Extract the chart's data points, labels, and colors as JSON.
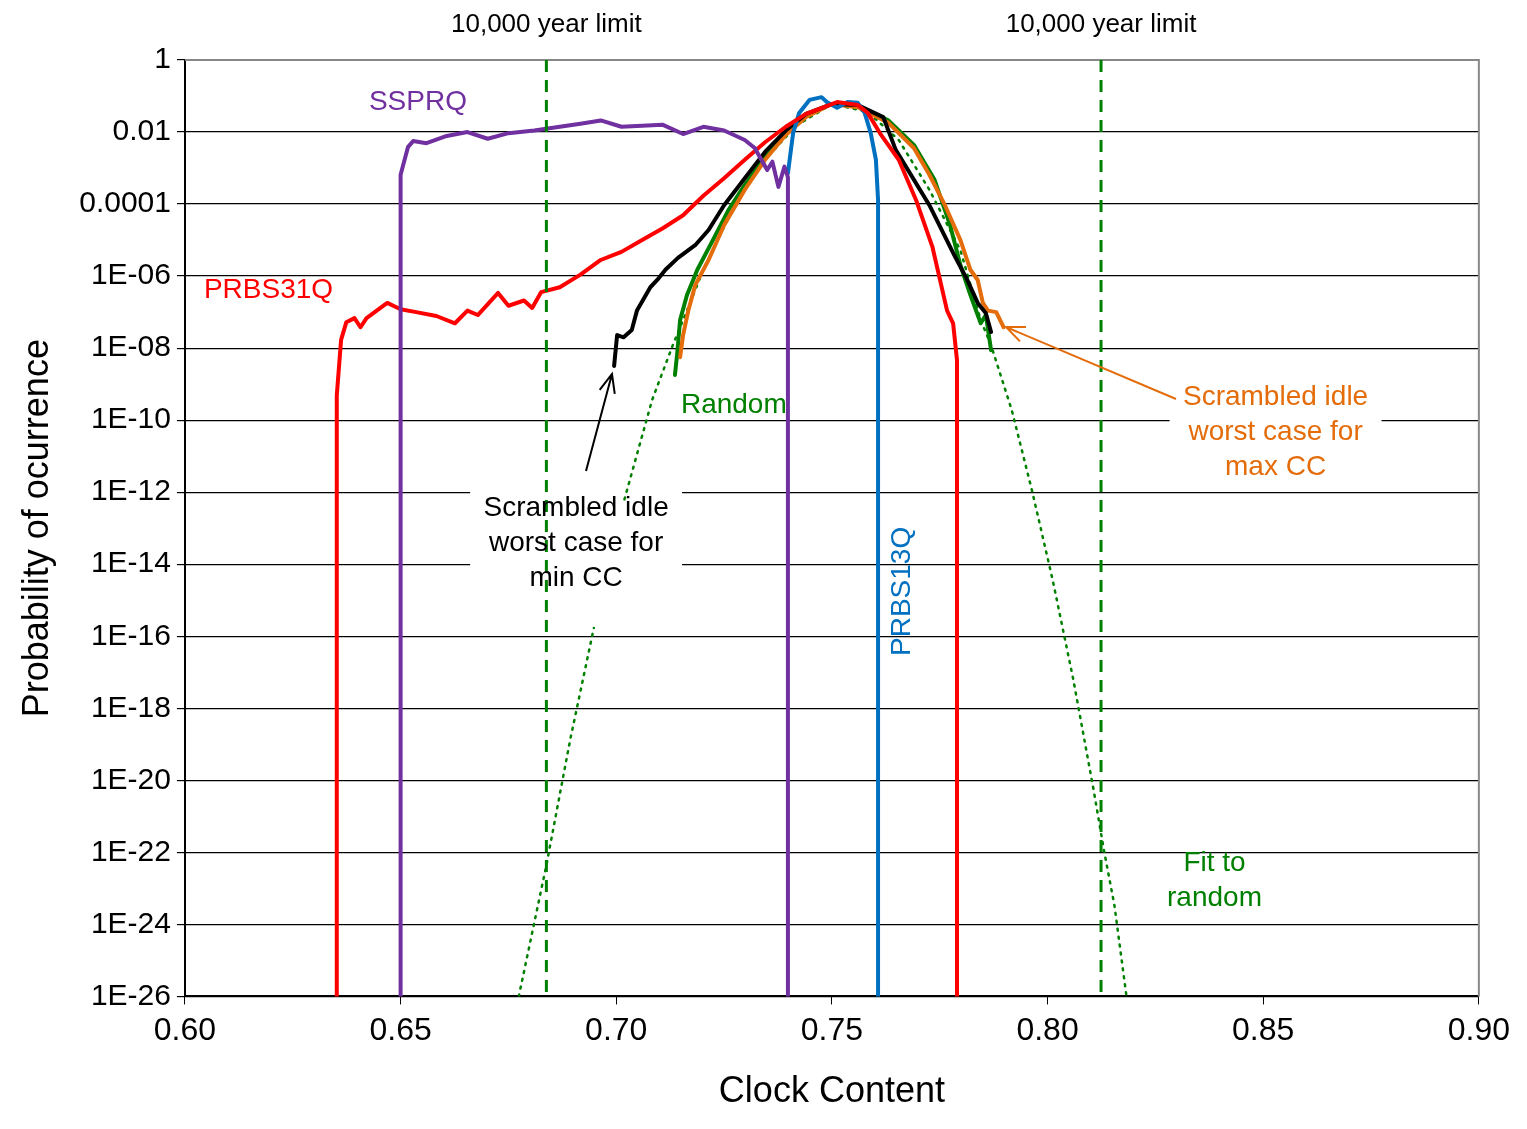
{
  "chart_data": {
    "type": "line",
    "xlabel": "Clock Content",
    "ylabel": "Probability of ocurrence",
    "log": "y",
    "grid": "y",
    "xlim": [
      0.6,
      0.9
    ],
    "xticks": [
      {
        "value": 0.6,
        "label": "0.60"
      },
      {
        "value": 0.65,
        "label": "0.65"
      },
      {
        "value": 0.7,
        "label": "0.70"
      },
      {
        "value": 0.75,
        "label": "0.75"
      },
      {
        "value": 0.8,
        "label": "0.80"
      },
      {
        "value": 0.85,
        "label": "0.85"
      },
      {
        "value": 0.9,
        "label": "0.90"
      }
    ],
    "ylim": [
      1e-26,
      1
    ],
    "yticks": [
      1,
      0.01,
      0.0001,
      {
        "value": 1e-06,
        "label": "1E-06"
      },
      {
        "value": 1e-08,
        "label": "1E-08"
      },
      {
        "value": 1e-10,
        "label": "1E-10"
      },
      {
        "value": 1e-12,
        "label": "1E-12"
      },
      {
        "value": 1e-14,
        "label": "1E-14"
      },
      {
        "value": 1e-16,
        "label": "1E-16"
      },
      {
        "value": 1e-18,
        "label": "1E-18"
      },
      {
        "value": 1e-20,
        "label": "1E-20"
      },
      {
        "value": 1e-22,
        "label": "1E-22"
      },
      {
        "value": 1e-24,
        "label": "1E-24"
      },
      {
        "value": 1e-26,
        "label": "1E-26"
      }
    ],
    "series": [
      {
        "name": "SSPRQ",
        "color": "#7030a0",
        "x": [
          0.65,
          0.65,
          0.6517,
          0.6529,
          0.656,
          0.6607,
          0.6655,
          0.6702,
          0.675,
          0.681,
          0.6869,
          0.6917,
          0.6964,
          0.7012,
          0.706,
          0.7107,
          0.7155,
          0.7202,
          0.725,
          0.7298,
          0.7321,
          0.735,
          0.7362,
          0.7376,
          0.739,
          0.7398,
          0.7398
        ],
        "values": [
          1e-26,
          0.00065,
          0.0038,
          0.0056,
          0.0049,
          0.0078,
          0.01,
          0.0065,
          0.0093,
          0.011,
          0.014,
          0.017,
          0.021,
          0.014,
          0.015,
          0.016,
          0.0088,
          0.014,
          0.011,
          0.006,
          0.0036,
          0.00088,
          0.0015,
          0.0003,
          0.0011,
          0.00056,
          1e-26
        ]
      },
      {
        "name": "PRBS31Q",
        "color": "#ff0000",
        "x": [
          0.6352,
          0.6352,
          0.6362,
          0.6374,
          0.6393,
          0.6407,
          0.6421,
          0.6469,
          0.65,
          0.6536,
          0.6583,
          0.6626,
          0.6655,
          0.6679,
          0.6726,
          0.675,
          0.6786,
          0.6805,
          0.6826,
          0.6869,
          0.6917,
          0.6964,
          0.7012,
          0.706,
          0.7107,
          0.7155,
          0.7202,
          0.725,
          0.7298,
          0.7345,
          0.7393,
          0.744,
          0.7512,
          0.756,
          0.7583,
          0.7614,
          0.7655,
          0.7695,
          0.7733,
          0.7767,
          0.7781,
          0.779,
          0.779
        ],
        "values": [
          1e-26,
          4.9e-10,
          1.7e-08,
          5.2e-08,
          6.8e-08,
          3.8e-08,
          6.8e-08,
          1.8e-07,
          1.2e-07,
          1e-07,
          7.8e-08,
          4.9e-08,
          1.1e-07,
          8.3e-08,
          3.4e-07,
          1.5e-07,
          2.1e-07,
          1.3e-07,
          3.6e-07,
          4.9e-07,
          1.1e-06,
          2.8e-06,
          4.7e-06,
          1e-05,
          2.1e-05,
          4.9e-05,
          0.00017,
          0.00052,
          0.0017,
          0.0052,
          0.014,
          0.032,
          0.068,
          0.056,
          0.034,
          0.0083,
          0.0017,
          0.00013,
          6.5e-06,
          1.1e-07,
          4.9e-08,
          4.7e-09,
          1e-26
        ]
      },
      {
        "name": "PRBS13Q",
        "color": "#0070c0",
        "x": [
          0.7398,
          0.741,
          0.7424,
          0.7448,
          0.7476,
          0.7488,
          0.7512,
          0.7536,
          0.756,
          0.7576,
          0.759,
          0.7602,
          0.7607,
          0.7607
        ],
        "values": [
          0.00072,
          0.0093,
          0.034,
          0.078,
          0.093,
          0.068,
          0.047,
          0.068,
          0.065,
          0.034,
          0.0093,
          0.0017,
          0.00013,
          1e-26
        ]
      },
      {
        "color": "#000000",
        "x": [
          0.6995,
          0.7002,
          0.7017,
          0.7036,
          0.7048,
          0.7079,
          0.7095,
          0.7114,
          0.7143,
          0.7183,
          0.7214,
          0.725,
          0.7298,
          0.7345,
          0.7393,
          0.744,
          0.75,
          0.756,
          0.7619,
          0.7648,
          0.7726,
          0.7781,
          0.7814,
          0.7838,
          0.7857,
          0.7869
        ],
        "values": [
          3.2e-09,
          2.3e-08,
          2e-08,
          3.2e-08,
          1.1e-07,
          4.9e-07,
          7.8e-07,
          1.5e-06,
          3.2e-06,
          7.2e-06,
          1.9e-05,
          9.3e-05,
          0.00052,
          0.0028,
          0.011,
          0.032,
          0.06,
          0.056,
          0.026,
          0.0032,
          9.3e-05,
          4.4e-06,
          7.8e-07,
          1.8e-07,
          9.3e-08,
          2.8e-08
        ]
      },
      {
        "color": "#e46c0a",
        "x": [
          0.7148,
          0.7155,
          0.7167,
          0.7183,
          0.7214,
          0.725,
          0.7298,
          0.7345,
          0.7393,
          0.744,
          0.75,
          0.756,
          0.7631,
          0.769,
          0.7726,
          0.7762,
          0.7798,
          0.7821,
          0.7838,
          0.785,
          0.7862,
          0.7881,
          0.7898
        ],
        "values": [
          5.6e-09,
          2.3e-08,
          1.1e-07,
          5.6e-07,
          2.8e-06,
          2.6e-05,
          0.00025,
          0.0017,
          0.0083,
          0.026,
          0.06,
          0.049,
          0.018,
          0.0036,
          0.00065,
          9.3e-05,
          1e-05,
          1.5e-06,
          7.8e-07,
          1.8e-07,
          1.1e-07,
          1e-07,
          3.8e-08
        ]
      },
      {
        "name": "Random",
        "color": "#008000",
        "x": [
          0.7136,
          0.7141,
          0.7148,
          0.7164,
          0.7188,
          0.7224,
          0.726,
          0.7298,
          0.7345,
          0.7393,
          0.744,
          0.75,
          0.756,
          0.7631,
          0.769,
          0.7738,
          0.7774,
          0.7798,
          0.7821,
          0.7845,
          0.7857,
          0.7869
        ],
        "values": [
          1.8e-09,
          6.5e-09,
          6e-08,
          3e-07,
          1.5e-06,
          1e-05,
          6.8e-05,
          0.00034,
          0.002,
          0.0093,
          0.03,
          0.06,
          0.052,
          0.021,
          0.0044,
          0.00047,
          2.6e-05,
          2e-06,
          3e-07,
          4.9e-08,
          8.3e-08,
          8.7e-09
        ]
      },
      {
        "name": "Fit to\nrandom",
        "color": "#008000",
        "line_style": "dotted",
        "x": [
          0.6774,
          0.6838,
          0.6893,
          0.6948,
          0.698,
          0.7019,
          0.7083,
          0.7131,
          0.7155,
          0.7202,
          0.7274,
          0.7345,
          0.7417,
          0.75,
          0.7583,
          0.7655,
          0.7726,
          0.7798,
          0.7845,
          0.7869,
          0.7917,
          0.7964,
          0.8012,
          0.806,
          0.8107,
          0.8131,
          0.8155,
          0.8183
        ],
        "values": [
          1e-26,
          4.4e-23,
          1.3e-19,
          1.7e-16,
          null,
          6.3e-13,
          3.6e-10,
          1.2e-08,
          6e-08,
          1.5e-06,
          9.3e-05,
          0.0017,
          0.015,
          0.06,
          0.036,
          0.006,
          0.00025,
          5.2e-06,
          6e-08,
          1.2e-08,
          1.9e-10,
          1.1e-12,
          3.6e-15,
          6e-18,
          5.2e-21,
          1.1e-22,
          3.4e-24,
          1e-26
        ]
      }
    ],
    "ref_lines": [
      {
        "axis": "x",
        "value": 0.6838,
        "label": "10,000 year limit",
        "color": "#008000",
        "line_style": "dashed"
      },
      {
        "axis": "x",
        "value": 0.8124,
        "label": "10,000 year limit",
        "color": "#008000",
        "line_style": "dashed"
      }
    ],
    "annotations": [
      {
        "text": "Scrambled idle\nworst case for\nmin CC",
        "x": 0.6995,
        "y": 3.2e-09
      },
      {
        "text": "Scrambled idle\nworst case for\nmax CC",
        "x": 0.7898,
        "y": 3.8e-08
      }
    ]
  }
}
